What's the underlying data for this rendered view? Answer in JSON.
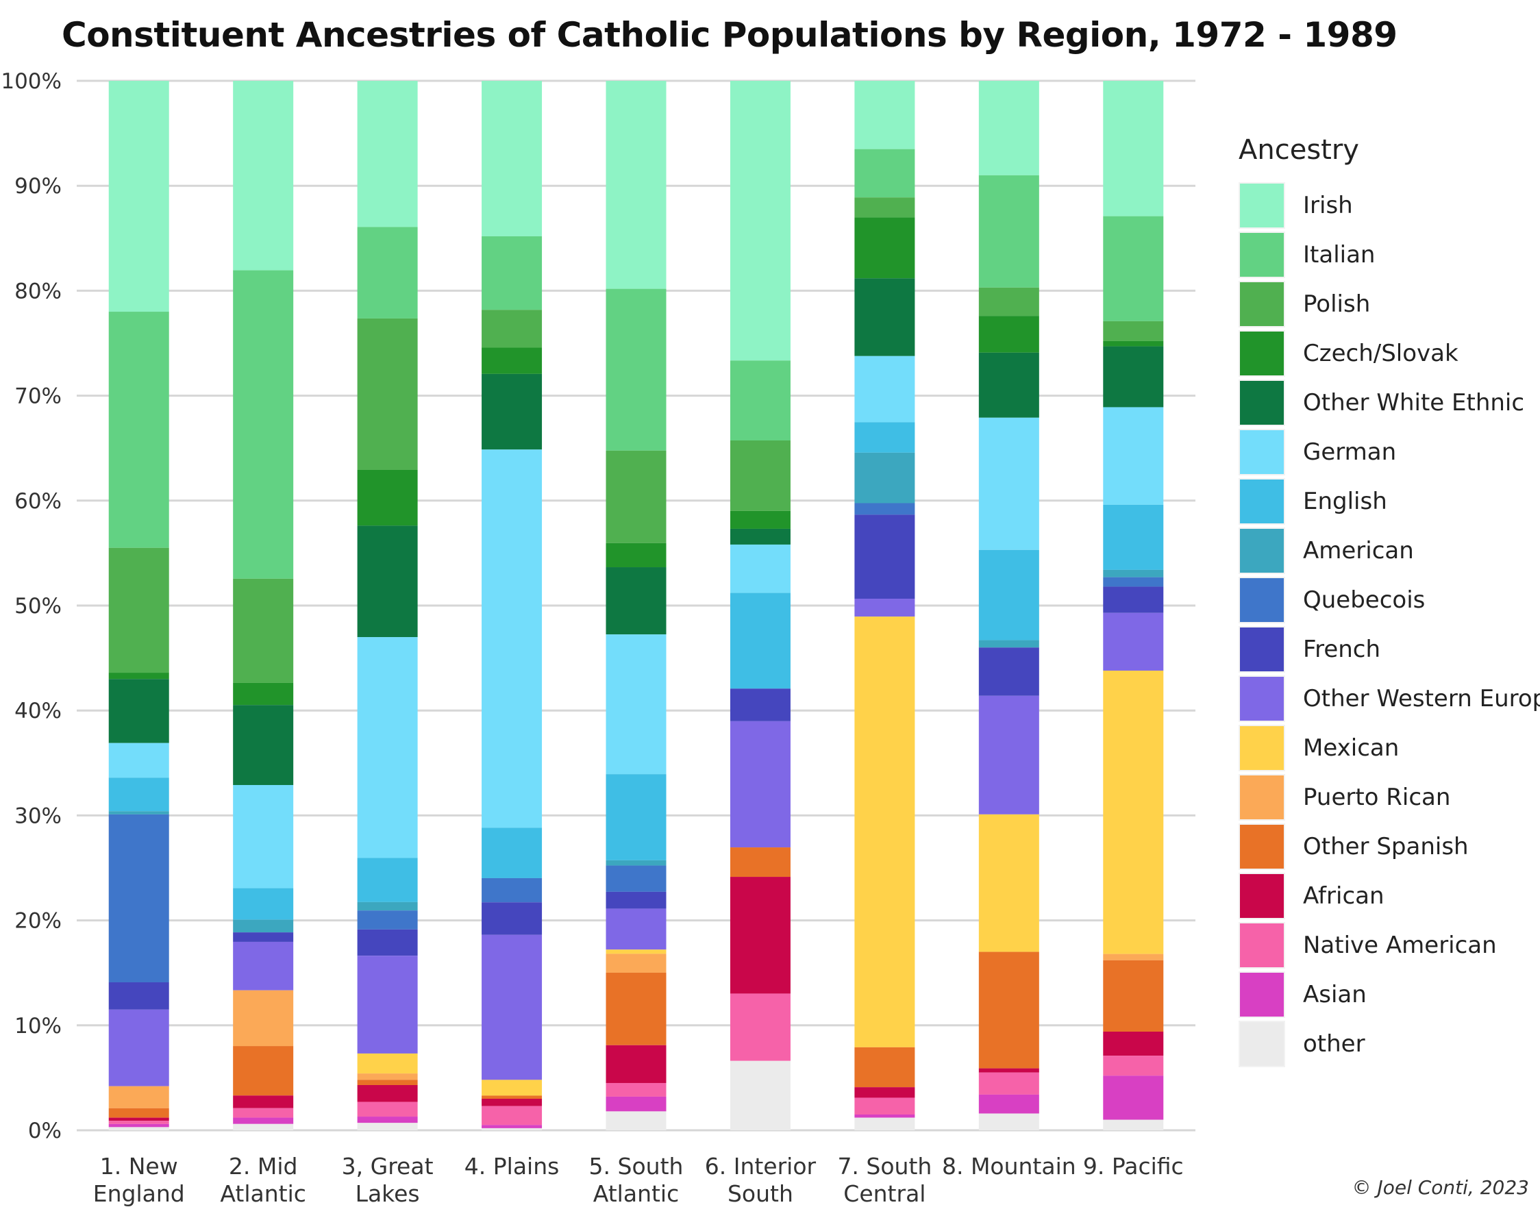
{
  "chart_data": {
    "type": "bar",
    "stacked": true,
    "percent_stacked": true,
    "title": "Constituent Ancestries of Catholic Populations by Region, 1972 - 1989",
    "xlabel": "",
    "ylabel": "",
    "ylim": [
      0,
      100
    ],
    "y_ticks": [
      "0%",
      "10%",
      "20%",
      "30%",
      "40%",
      "50%",
      "60%",
      "70%",
      "80%",
      "90%",
      "100%"
    ],
    "grid": "horizontal",
    "legend_title": "Ancestry",
    "legend_position": "right",
    "categories": [
      "1. New England",
      "2. Mid Atlantic",
      "3, Great Lakes",
      "4. Plains",
      "5. South Atlantic",
      "6. Interior South",
      "7. South Central",
      "8. Mountain",
      "9. Pacific"
    ],
    "series": [
      {
        "name": "Irish",
        "color": "#8EF3C5",
        "values": [
          22,
          18,
          13.9,
          14.8,
          19.8,
          26.6,
          6.5,
          9,
          12.9
        ]
      },
      {
        "name": "Italian",
        "color": "#62D283",
        "values": [
          22.5,
          29.3,
          8.7,
          7,
          15.4,
          7.6,
          4.6,
          10.7,
          10
        ]
      },
      {
        "name": "Polish",
        "color": "#50B050",
        "values": [
          11.9,
          9.9,
          14.4,
          3.6,
          8.8,
          6.7,
          1.9,
          2.7,
          1.9
        ]
      },
      {
        "name": "Czech/Slovak",
        "color": "#21942A",
        "values": [
          0.6,
          2.1,
          5.3,
          2.5,
          2.3,
          1.7,
          5.8,
          3.5,
          0.5
        ]
      },
      {
        "name": "Other White Ethnic",
        "color": "#0E7842",
        "values": [
          6.1,
          7.6,
          10.6,
          7.2,
          6.4,
          1.5,
          7.4,
          6.2,
          5.8
        ]
      },
      {
        "name": "German",
        "color": "#73DDFB",
        "values": [
          3.3,
          9.8,
          21,
          36,
          13.3,
          4.6,
          6.3,
          12.6,
          9.3
        ]
      },
      {
        "name": "English",
        "color": "#3FBEE5",
        "values": [
          3.2,
          3,
          4.2,
          4.8,
          8.2,
          9.1,
          2.9,
          8.6,
          6.2
        ]
      },
      {
        "name": "American",
        "color": "#3CA7BF",
        "values": [
          0.3,
          1.2,
          0.8,
          0,
          0.5,
          0,
          4.8,
          0.7,
          0.7
        ]
      },
      {
        "name": "Quebecois",
        "color": "#3F76CA",
        "values": [
          16,
          0,
          1.8,
          2.3,
          2.5,
          0,
          1.1,
          0,
          0.9
        ]
      },
      {
        "name": "French",
        "color": "#4546BE",
        "values": [
          2.6,
          0.9,
          2.5,
          3.1,
          1.6,
          3.1,
          8,
          4.6,
          2.5
        ]
      },
      {
        "name": "Other Western Europe",
        "color": "#7F68E6",
        "values": [
          7.3,
          4.6,
          9.3,
          13.8,
          3.9,
          12,
          1.7,
          11.3,
          5.5
        ]
      },
      {
        "name": "Mexican",
        "color": "#FFD24A",
        "values": [
          0,
          0,
          1.9,
          1.5,
          0.4,
          0,
          41,
          13.1,
          27
        ]
      },
      {
        "name": "Puerto Rican",
        "color": "#FBA957",
        "values": [
          2.1,
          5.3,
          0.6,
          0,
          1.8,
          0,
          0,
          0,
          0.6
        ]
      },
      {
        "name": "Other Spanish",
        "color": "#E87227",
        "values": [
          0.9,
          4.7,
          0.5,
          0.3,
          6.9,
          2.8,
          3.8,
          11.1,
          6.8
        ]
      },
      {
        "name": "African",
        "color": "#C9064A",
        "values": [
          0.3,
          1.2,
          1.6,
          0.7,
          3.6,
          11.1,
          1,
          0.4,
          2.3
        ]
      },
      {
        "name": "Native American",
        "color": "#F662A9",
        "values": [
          0.3,
          0.9,
          1.4,
          1.8,
          1.3,
          6.4,
          1.6,
          2.1,
          1.9
        ]
      },
      {
        "name": "Asian",
        "color": "#D840C3",
        "values": [
          0.3,
          0.6,
          0.6,
          0.3,
          1.4,
          0,
          0.3,
          1.8,
          4.2
        ]
      },
      {
        "name": "other",
        "color": "#EBEBEB",
        "values": [
          0.3,
          0.6,
          0.7,
          0.2,
          1.8,
          6.6,
          1.2,
          1.6,
          1.0
        ]
      }
    ]
  },
  "credit": "© Joel Conti, 2023"
}
